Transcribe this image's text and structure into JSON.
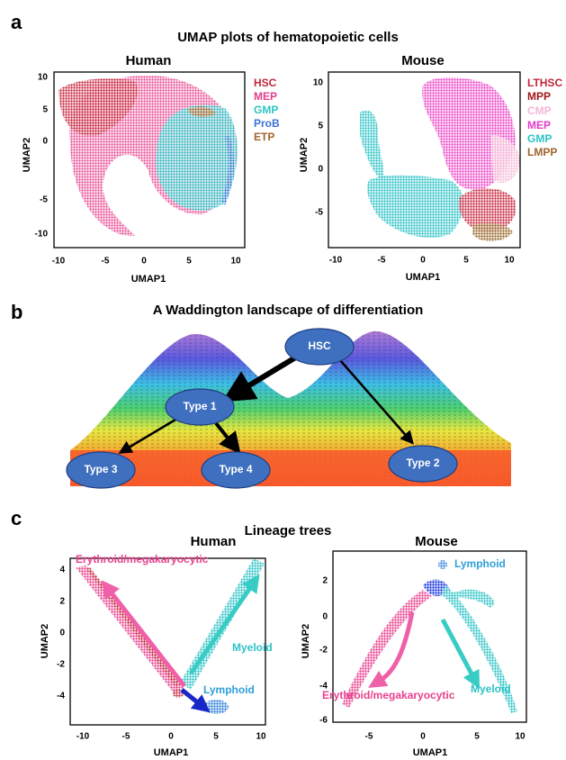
{
  "panel_a": {
    "label": "a",
    "title": "UMAP plots of hematopoietic cells",
    "human": {
      "title": "Human",
      "x_label": "UMAP1",
      "y_label": "UMAP2",
      "x_ticks": [
        "-10",
        "-5",
        "0",
        "5",
        "10"
      ],
      "y_ticks": [
        "10",
        "5",
        "0",
        "-5",
        "-10"
      ],
      "legend": [
        "HSC",
        "MEP",
        "GMP",
        "ProB",
        "ETP"
      ]
    },
    "mouse": {
      "title": "Mouse",
      "x_label": "UMAP1",
      "y_label": "UMAP2",
      "x_ticks": [
        "-10",
        "-5",
        "0",
        "5",
        "10"
      ],
      "y_ticks": [
        "10",
        "5",
        "0",
        "-5"
      ],
      "legend": [
        "LTHSC",
        "MPP",
        "CMP",
        "MEP",
        "GMP",
        "LMPP"
      ]
    }
  },
  "panel_b": {
    "label": "b",
    "title": "A Waddington landscape of differentiation",
    "nodes": [
      "HSC",
      "Type 1",
      "Type 2",
      "Type 3",
      "Type 4"
    ]
  },
  "panel_c": {
    "label": "c",
    "title": "Lineage trees",
    "human": {
      "title": "Human",
      "x_label": "UMAP1",
      "y_label": "UMAP2",
      "x_ticks": [
        "-10",
        "-5",
        "0",
        "5",
        "10"
      ],
      "y_ticks": [
        "4",
        "2",
        "0",
        "-2",
        "-4"
      ],
      "annotations": [
        "Erythroid/megakaryocytic",
        "Myeloid",
        "Lymphoid"
      ]
    },
    "mouse": {
      "title": "Mouse",
      "x_label": "UMAP1",
      "y_label": "UMAP2",
      "x_ticks": [
        "-5",
        "0",
        "5",
        "10"
      ],
      "y_ticks": [
        "2",
        "0",
        "-2",
        "-4",
        "-6"
      ],
      "annotations": [
        "Lymphoid",
        "Myeloid",
        "Erythroid/megakaryocytic"
      ]
    }
  }
}
